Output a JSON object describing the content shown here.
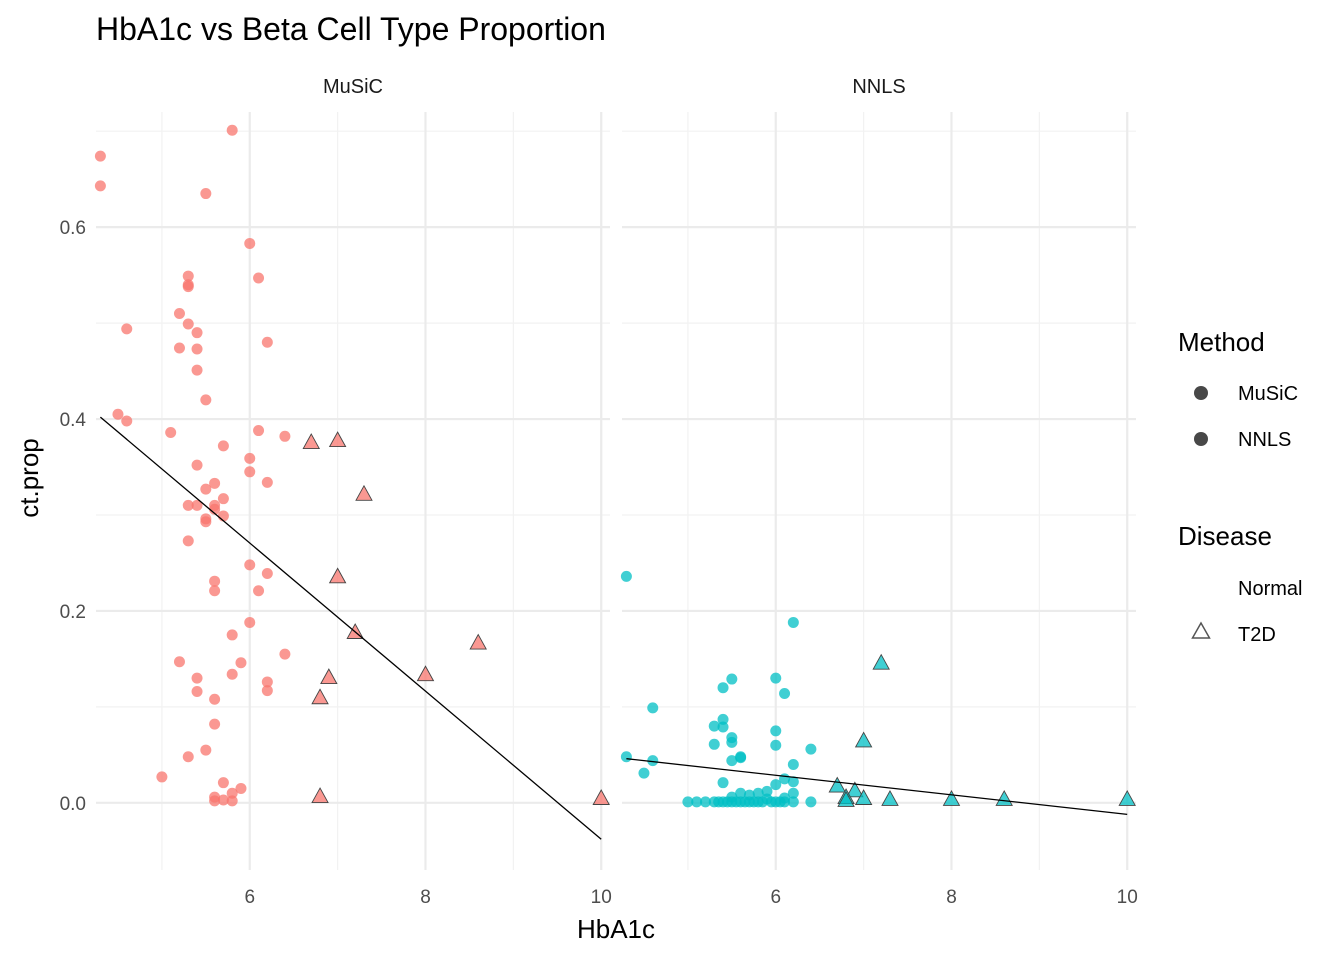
{
  "chart_data": {
    "type": "scatter",
    "title": "HbA1c vs Beta Cell Type Proportion",
    "xlabel": "HbA1c",
    "ylabel": "ct.prop",
    "xlim": [
      4.25,
      10.1
    ],
    "ylim": [
      -0.07,
      0.72
    ],
    "x_ticks": [
      6,
      8,
      10
    ],
    "y_ticks": [
      0.0,
      0.2,
      0.4,
      0.6
    ],
    "x_tick_labels": [
      "6",
      "8",
      "10"
    ],
    "y_tick_labels": [
      "0.0",
      "0.2",
      "0.4",
      "0.6"
    ],
    "grid": true,
    "facets": [
      {
        "name": "MuSiC",
        "color": "#F8766D",
        "normal_points": [
          [
            4.3,
            0.674
          ],
          [
            4.3,
            0.643
          ],
          [
            5.8,
            0.701
          ],
          [
            5.5,
            0.635
          ],
          [
            6.0,
            0.583
          ],
          [
            6.1,
            0.547
          ],
          [
            5.3,
            0.549
          ],
          [
            5.3,
            0.54
          ],
          [
            5.3,
            0.538
          ],
          [
            5.2,
            0.51
          ],
          [
            5.3,
            0.499
          ],
          [
            5.4,
            0.49
          ],
          [
            4.6,
            0.494
          ],
          [
            6.2,
            0.48
          ],
          [
            5.2,
            0.474
          ],
          [
            5.4,
            0.473
          ],
          [
            5.4,
            0.451
          ],
          [
            5.5,
            0.42
          ],
          [
            4.5,
            0.405
          ],
          [
            4.6,
            0.398
          ],
          [
            5.1,
            0.386
          ],
          [
            6.1,
            0.388
          ],
          [
            6.4,
            0.382
          ],
          [
            5.7,
            0.372
          ],
          [
            6.0,
            0.359
          ],
          [
            5.4,
            0.352
          ],
          [
            6.0,
            0.345
          ],
          [
            6.2,
            0.334
          ],
          [
            5.6,
            0.333
          ],
          [
            5.5,
            0.327
          ],
          [
            5.7,
            0.317
          ],
          [
            5.3,
            0.31
          ],
          [
            5.4,
            0.31
          ],
          [
            5.6,
            0.31
          ],
          [
            5.6,
            0.306
          ],
          [
            5.7,
            0.299
          ],
          [
            5.5,
            0.296
          ],
          [
            5.5,
            0.293
          ],
          [
            5.3,
            0.273
          ],
          [
            6.0,
            0.248
          ],
          [
            6.2,
            0.239
          ],
          [
            5.6,
            0.231
          ],
          [
            5.6,
            0.221
          ],
          [
            6.1,
            0.221
          ],
          [
            6.0,
            0.188
          ],
          [
            5.8,
            0.175
          ],
          [
            6.4,
            0.155
          ],
          [
            5.2,
            0.147
          ],
          [
            5.9,
            0.146
          ],
          [
            5.8,
            0.134
          ],
          [
            5.4,
            0.13
          ],
          [
            6.2,
            0.126
          ],
          [
            5.4,
            0.116
          ],
          [
            6.2,
            0.117
          ],
          [
            5.6,
            0.108
          ],
          [
            5.6,
            0.082
          ],
          [
            5.5,
            0.055
          ],
          [
            5.3,
            0.048
          ],
          [
            5.0,
            0.027
          ],
          [
            5.7,
            0.021
          ],
          [
            5.9,
            0.015
          ],
          [
            5.8,
            0.01
          ],
          [
            5.6,
            0.006
          ],
          [
            5.7,
            0.003
          ],
          [
            5.6,
            0.002
          ],
          [
            5.8,
            0.002
          ]
        ],
        "t2d_points": [
          [
            6.7,
            0.375
          ],
          [
            7.0,
            0.377
          ],
          [
            7.3,
            0.321
          ],
          [
            7.0,
            0.235
          ],
          [
            7.2,
            0.177
          ],
          [
            8.6,
            0.166
          ],
          [
            8.0,
            0.133
          ],
          [
            6.9,
            0.13
          ],
          [
            6.8,
            0.109
          ],
          [
            6.8,
            0.006
          ],
          [
            10.0,
            0.004
          ]
        ],
        "fit_line": [
          [
            4.3,
            0.402
          ],
          [
            10.0,
            -0.038
          ]
        ]
      },
      {
        "name": "NNLS",
        "color": "#00BFC4",
        "normal_points": [
          [
            4.3,
            0.236
          ],
          [
            6.2,
            0.188
          ],
          [
            6.0,
            0.13
          ],
          [
            5.5,
            0.129
          ],
          [
            5.4,
            0.12
          ],
          [
            6.1,
            0.114
          ],
          [
            4.6,
            0.099
          ],
          [
            5.4,
            0.087
          ],
          [
            5.3,
            0.08
          ],
          [
            5.4,
            0.079
          ],
          [
            6.0,
            0.075
          ],
          [
            5.5,
            0.068
          ],
          [
            5.5,
            0.063
          ],
          [
            5.3,
            0.061
          ],
          [
            6.0,
            0.06
          ],
          [
            6.4,
            0.056
          ],
          [
            5.6,
            0.048
          ],
          [
            5.6,
            0.047
          ],
          [
            4.3,
            0.048
          ],
          [
            5.5,
            0.044
          ],
          [
            4.6,
            0.044
          ],
          [
            6.2,
            0.04
          ],
          [
            4.5,
            0.031
          ],
          [
            6.1,
            0.025
          ],
          [
            6.2,
            0.022
          ],
          [
            5.4,
            0.021
          ],
          [
            6.0,
            0.019
          ],
          [
            5.9,
            0.012
          ],
          [
            5.6,
            0.01
          ],
          [
            6.2,
            0.01
          ],
          [
            5.8,
            0.01
          ],
          [
            5.7,
            0.008
          ],
          [
            5.5,
            0.006
          ],
          [
            6.1,
            0.005
          ],
          [
            5.9,
            0.004
          ],
          [
            5.0,
            0.001
          ],
          [
            5.1,
            0.001
          ],
          [
            5.2,
            0.001
          ],
          [
            5.3,
            0.001
          ],
          [
            5.35,
            0.001
          ],
          [
            5.4,
            0.001
          ],
          [
            5.45,
            0.001
          ],
          [
            5.5,
            0.001
          ],
          [
            5.55,
            0.001
          ],
          [
            5.6,
            0.001
          ],
          [
            5.65,
            0.001
          ],
          [
            5.7,
            0.001
          ],
          [
            5.75,
            0.001
          ],
          [
            5.8,
            0.001
          ],
          [
            5.85,
            0.001
          ],
          [
            5.95,
            0.001
          ],
          [
            6.0,
            0.001
          ],
          [
            6.05,
            0.001
          ],
          [
            6.1,
            0.001
          ],
          [
            6.2,
            0.001
          ],
          [
            6.4,
            0.001
          ]
        ],
        "t2d_points": [
          [
            7.2,
            0.145
          ],
          [
            7.0,
            0.064
          ],
          [
            6.7,
            0.017
          ],
          [
            6.9,
            0.012
          ],
          [
            6.8,
            0.005
          ],
          [
            6.8,
            0.002
          ],
          [
            7.0,
            0.004
          ],
          [
            7.3,
            0.003
          ],
          [
            8.0,
            0.003
          ],
          [
            8.6,
            0.003
          ],
          [
            10.0,
            0.003
          ]
        ],
        "fit_line": [
          [
            4.3,
            0.046
          ],
          [
            10.0,
            -0.012
          ]
        ]
      }
    ],
    "legend": {
      "position": "right",
      "method_title": "Method",
      "method_items": [
        "MuSiC",
        "NNLS"
      ],
      "disease_title": "Disease",
      "disease_items": [
        "Normal",
        "T2D"
      ]
    }
  }
}
